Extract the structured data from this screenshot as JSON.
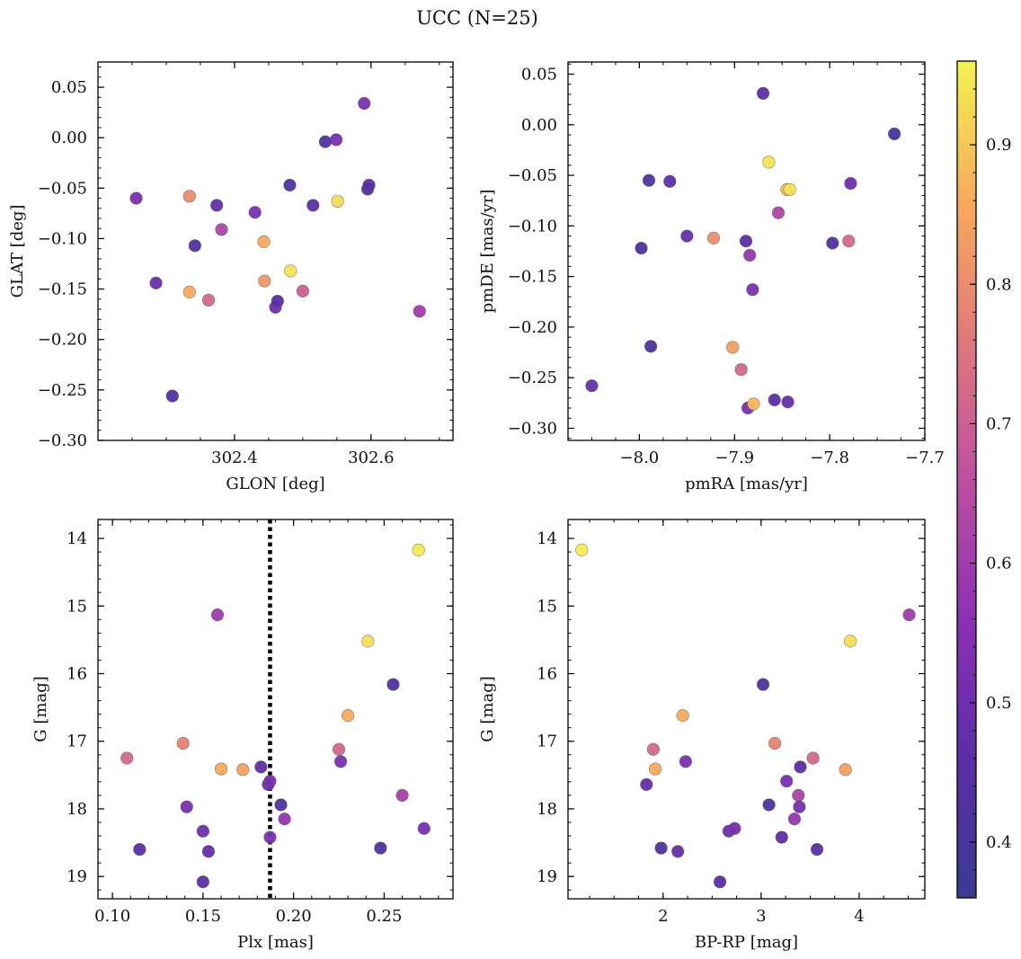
{
  "figure": {
    "suptitle": "UCC (N=25)"
  },
  "colorbar": {
    "min": 0.36,
    "max": 0.96,
    "ticks": [
      0.4,
      0.5,
      0.6,
      0.7,
      0.8,
      0.9
    ]
  },
  "chart_data": [
    {
      "type": "scatter",
      "xlabel": "GLON [deg]",
      "ylabel": "GLAT [deg]",
      "xlim": [
        302.2,
        302.72
      ],
      "ylim": [
        -0.3,
        0.075
      ],
      "xticks": [
        302.4,
        302.6
      ],
      "yticks": [
        0.05,
        0.0,
        -0.05,
        -0.1,
        -0.15,
        -0.2,
        -0.25,
        -0.3
      ],
      "points": [
        {
          "x": 302.256,
          "y": -0.06,
          "c": 0.52
        },
        {
          "x": 302.334,
          "y": -0.058,
          "c": 0.8
        },
        {
          "x": 302.374,
          "y": -0.067,
          "c": 0.48
        },
        {
          "x": 302.381,
          "y": -0.091,
          "c": 0.63
        },
        {
          "x": 302.342,
          "y": -0.107,
          "c": 0.44
        },
        {
          "x": 302.285,
          "y": -0.144,
          "c": 0.5
        },
        {
          "x": 302.334,
          "y": -0.153,
          "c": 0.86
        },
        {
          "x": 302.362,
          "y": -0.161,
          "c": 0.72
        },
        {
          "x": 302.309,
          "y": -0.256,
          "c": 0.42
        },
        {
          "x": 302.43,
          "y": -0.074,
          "c": 0.52
        },
        {
          "x": 302.443,
          "y": -0.103,
          "c": 0.86
        },
        {
          "x": 302.444,
          "y": -0.142,
          "c": 0.82
        },
        {
          "x": 302.46,
          "y": -0.168,
          "c": 0.5
        },
        {
          "x": 302.463,
          "y": -0.162,
          "c": 0.46
        },
        {
          "x": 302.481,
          "y": -0.047,
          "c": 0.42
        },
        {
          "x": 302.482,
          "y": -0.132,
          "c": 0.94
        },
        {
          "x": 302.5,
          "y": -0.152,
          "c": 0.7
        },
        {
          "x": 302.515,
          "y": -0.067,
          "c": 0.46
        },
        {
          "x": 302.533,
          "y": -0.004,
          "c": 0.42
        },
        {
          "x": 302.549,
          "y": -0.002,
          "c": 0.52
        },
        {
          "x": 302.551,
          "y": -0.063,
          "c": 0.93
        },
        {
          "x": 302.59,
          "y": 0.034,
          "c": 0.52
        },
        {
          "x": 302.595,
          "y": -0.051,
          "c": 0.42
        },
        {
          "x": 302.597,
          "y": -0.047,
          "c": 0.46
        },
        {
          "x": 302.671,
          "y": -0.172,
          "c": 0.6
        }
      ]
    },
    {
      "type": "scatter",
      "xlabel": "pmRA [mas/yr]",
      "ylabel": "pmDE [mas/yr]",
      "xlim": [
        -8.075,
        -7.7
      ],
      "ylim": [
        -0.312,
        0.062
      ],
      "xticks": [
        -8.0,
        -7.9,
        -7.8,
        -7.7
      ],
      "yticks": [
        0.05,
        0.0,
        -0.05,
        -0.1,
        -0.15,
        -0.2,
        -0.25,
        -0.3
      ],
      "points": [
        {
          "x": -8.05,
          "y": -0.258,
          "c": 0.48
        },
        {
          "x": -7.998,
          "y": -0.122,
          "c": 0.42
        },
        {
          "x": -7.99,
          "y": -0.055,
          "c": 0.42
        },
        {
          "x": -7.988,
          "y": -0.219,
          "c": 0.42
        },
        {
          "x": -7.968,
          "y": -0.056,
          "c": 0.46
        },
        {
          "x": -7.95,
          "y": -0.11,
          "c": 0.48
        },
        {
          "x": -7.922,
          "y": -0.112,
          "c": 0.8
        },
        {
          "x": -7.902,
          "y": -0.22,
          "c": 0.84
        },
        {
          "x": -7.893,
          "y": -0.242,
          "c": 0.72
        },
        {
          "x": -7.888,
          "y": -0.115,
          "c": 0.46
        },
        {
          "x": -7.886,
          "y": -0.28,
          "c": 0.52
        },
        {
          "x": -7.884,
          "y": -0.129,
          "c": 0.58
        },
        {
          "x": -7.881,
          "y": -0.163,
          "c": 0.52
        },
        {
          "x": -7.88,
          "y": -0.276,
          "c": 0.88
        },
        {
          "x": -7.87,
          "y": 0.031,
          "c": 0.46
        },
        {
          "x": -7.864,
          "y": -0.037,
          "c": 0.94
        },
        {
          "x": -7.858,
          "y": -0.272,
          "c": 0.46
        },
        {
          "x": -7.854,
          "y": -0.087,
          "c": 0.63
        },
        {
          "x": -7.845,
          "y": -0.064,
          "c": 0.88
        },
        {
          "x": -7.842,
          "y": -0.064,
          "c": 0.94
        },
        {
          "x": -7.844,
          "y": -0.274,
          "c": 0.48
        },
        {
          "x": -7.797,
          "y": -0.117,
          "c": 0.42
        },
        {
          "x": -7.78,
          "y": -0.115,
          "c": 0.72
        },
        {
          "x": -7.778,
          "y": -0.058,
          "c": 0.5
        },
        {
          "x": -7.732,
          "y": -0.009,
          "c": 0.4
        }
      ]
    },
    {
      "type": "scatter",
      "xlabel": "Plx [mas]",
      "ylabel": "G [mag]",
      "xlim": [
        0.092,
        0.288
      ],
      "ylim": [
        19.33,
        13.72
      ],
      "xticks": [
        0.1,
        0.15,
        0.2,
        0.25
      ],
      "yticks": [
        14,
        15,
        16,
        17,
        18,
        19
      ],
      "vline": 0.187,
      "points": [
        {
          "x": 0.108,
          "y": 17.25,
          "c": 0.72
        },
        {
          "x": 0.115,
          "y": 18.6,
          "c": 0.46
        },
        {
          "x": 0.139,
          "y": 17.03,
          "c": 0.78
        },
        {
          "x": 0.141,
          "y": 17.97,
          "c": 0.52
        },
        {
          "x": 0.15,
          "y": 18.33,
          "c": 0.5
        },
        {
          "x": 0.15,
          "y": 19.08,
          "c": 0.46
        },
        {
          "x": 0.153,
          "y": 18.63,
          "c": 0.48
        },
        {
          "x": 0.158,
          "y": 15.13,
          "c": 0.6
        },
        {
          "x": 0.16,
          "y": 17.41,
          "c": 0.86
        },
        {
          "x": 0.172,
          "y": 17.42,
          "c": 0.84
        },
        {
          "x": 0.182,
          "y": 17.38,
          "c": 0.46
        },
        {
          "x": 0.186,
          "y": 17.64,
          "c": 0.48
        },
        {
          "x": 0.187,
          "y": 17.59,
          "c": 0.52
        },
        {
          "x": 0.187,
          "y": 18.42,
          "c": 0.52
        },
        {
          "x": 0.193,
          "y": 17.94,
          "c": 0.42
        },
        {
          "x": 0.195,
          "y": 18.15,
          "c": 0.58
        },
        {
          "x": 0.225,
          "y": 17.12,
          "c": 0.72
        },
        {
          "x": 0.226,
          "y": 17.3,
          "c": 0.52
        },
        {
          "x": 0.23,
          "y": 16.62,
          "c": 0.86
        },
        {
          "x": 0.241,
          "y": 15.52,
          "c": 0.93
        },
        {
          "x": 0.248,
          "y": 18.58,
          "c": 0.42
        },
        {
          "x": 0.255,
          "y": 16.16,
          "c": 0.42
        },
        {
          "x": 0.26,
          "y": 17.8,
          "c": 0.62
        },
        {
          "x": 0.269,
          "y": 14.17,
          "c": 0.95
        },
        {
          "x": 0.272,
          "y": 18.29,
          "c": 0.52
        }
      ]
    },
    {
      "type": "scatter",
      "xlabel": "BP-RP [mag]",
      "ylabel": "G [mag]",
      "xlim": [
        1.03,
        4.67
      ],
      "ylim": [
        19.33,
        13.72
      ],
      "xticks": [
        2,
        3,
        4
      ],
      "yticks": [
        14,
        15,
        16,
        17,
        18,
        19
      ],
      "points": [
        {
          "x": 1.17,
          "y": 14.17,
          "c": 0.95
        },
        {
          "x": 1.83,
          "y": 17.64,
          "c": 0.48
        },
        {
          "x": 1.9,
          "y": 17.12,
          "c": 0.72
        },
        {
          "x": 1.92,
          "y": 17.41,
          "c": 0.86
        },
        {
          "x": 1.98,
          "y": 18.58,
          "c": 0.42
        },
        {
          "x": 2.15,
          "y": 18.63,
          "c": 0.48
        },
        {
          "x": 2.2,
          "y": 16.62,
          "c": 0.86
        },
        {
          "x": 2.23,
          "y": 17.3,
          "c": 0.52
        },
        {
          "x": 2.58,
          "y": 19.08,
          "c": 0.46
        },
        {
          "x": 2.67,
          "y": 18.33,
          "c": 0.5
        },
        {
          "x": 2.73,
          "y": 18.29,
          "c": 0.52
        },
        {
          "x": 3.02,
          "y": 16.16,
          "c": 0.42
        },
        {
          "x": 3.08,
          "y": 17.94,
          "c": 0.42
        },
        {
          "x": 3.14,
          "y": 17.03,
          "c": 0.78
        },
        {
          "x": 3.21,
          "y": 18.42,
          "c": 0.46
        },
        {
          "x": 3.26,
          "y": 17.59,
          "c": 0.52
        },
        {
          "x": 3.34,
          "y": 18.15,
          "c": 0.58
        },
        {
          "x": 3.38,
          "y": 17.8,
          "c": 0.62
        },
        {
          "x": 3.39,
          "y": 17.97,
          "c": 0.52
        },
        {
          "x": 3.4,
          "y": 17.38,
          "c": 0.46
        },
        {
          "x": 3.53,
          "y": 17.25,
          "c": 0.72
        },
        {
          "x": 3.57,
          "y": 18.6,
          "c": 0.46
        },
        {
          "x": 3.86,
          "y": 17.42,
          "c": 0.84
        },
        {
          "x": 3.91,
          "y": 15.52,
          "c": 0.93
        },
        {
          "x": 4.51,
          "y": 15.13,
          "c": 0.6
        }
      ]
    }
  ]
}
